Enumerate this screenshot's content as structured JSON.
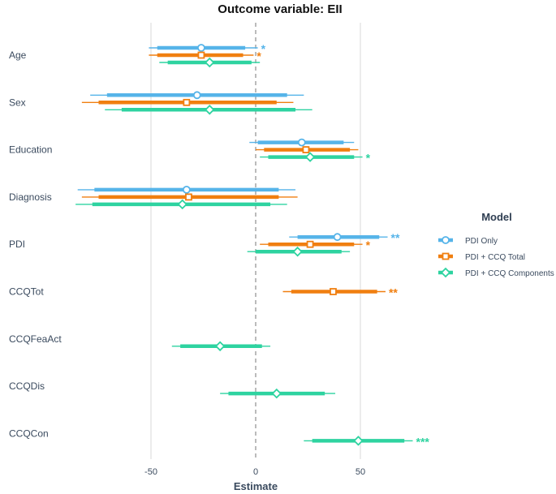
{
  "chart_data": {
    "type": "forest",
    "title": "Outcome variable: EII",
    "xlabel": "Estimate",
    "ylabel": "",
    "xlim": [
      -85,
      80
    ],
    "xticks": [
      -50,
      0,
      50
    ],
    "xtick_labels": [
      "-50",
      "0",
      "50"
    ],
    "grid": true,
    "reference_line": 0,
    "legend_title": "Model",
    "legend_position": "right",
    "categories": [
      "Age",
      "Sex",
      "Education",
      "Diagnosis",
      "PDI",
      "CCQTot",
      "CCQFeaAct",
      "CCQDis",
      "CCQCon"
    ],
    "series": [
      {
        "name": "PDI Only",
        "color": "#56B4E9",
        "marker": "circle",
        "points": [
          {
            "term": "Age",
            "estimate": -26,
            "ci90": [
              -47,
              -5
            ],
            "ci95": [
              -51,
              1
            ],
            "sig": "*"
          },
          {
            "term": "Sex",
            "estimate": -28,
            "ci90": [
              -71,
              15
            ],
            "ci95": [
              -79,
              23
            ],
            "sig": ""
          },
          {
            "term": "Education",
            "estimate": 22,
            "ci90": [
              1,
              42
            ],
            "ci95": [
              -3,
              47
            ],
            "sig": ""
          },
          {
            "term": "Diagnosis",
            "estimate": -33,
            "ci90": [
              -77,
              11
            ],
            "ci95": [
              -85,
              19
            ],
            "sig": ""
          },
          {
            "term": "PDI",
            "estimate": 39,
            "ci90": [
              20,
              59
            ],
            "ci95": [
              16,
              63
            ],
            "sig": "**"
          }
        ]
      },
      {
        "name": "PDI + CCQ Total",
        "color": "#F07F10",
        "marker": "square",
        "points": [
          {
            "term": "Age",
            "estimate": -26,
            "ci90": [
              -47,
              -6
            ],
            "ci95": [
              -51,
              -1
            ],
            "sig": "*"
          },
          {
            "term": "Sex",
            "estimate": -33,
            "ci90": [
              -75,
              10
            ],
            "ci95": [
              -83,
              18
            ],
            "sig": ""
          },
          {
            "term": "Education",
            "estimate": 24,
            "ci90": [
              4,
              45
            ],
            "ci95": [
              0,
              49
            ],
            "sig": ""
          },
          {
            "term": "Diagnosis",
            "estimate": -32,
            "ci90": [
              -75,
              11
            ],
            "ci95": [
              -83,
              20
            ],
            "sig": ""
          },
          {
            "term": "PDI",
            "estimate": 26,
            "ci90": [
              6,
              47
            ],
            "ci95": [
              2,
              51
            ],
            "sig": "*"
          },
          {
            "term": "CCQTot",
            "estimate": 37,
            "ci90": [
              17,
              58
            ],
            "ci95": [
              13,
              62
            ],
            "sig": "**"
          }
        ]
      },
      {
        "name": "PDI + CCQ Components",
        "color": "#2ED3A0",
        "marker": "diamond",
        "points": [
          {
            "term": "Age",
            "estimate": -22,
            "ci90": [
              -42,
              -2
            ],
            "ci95": [
              -46,
              2
            ],
            "sig": ""
          },
          {
            "term": "Sex",
            "estimate": -22,
            "ci90": [
              -64,
              19
            ],
            "ci95": [
              -72,
              27
            ],
            "sig": ""
          },
          {
            "term": "Education",
            "estimate": 26,
            "ci90": [
              6,
              47
            ],
            "ci95": [
              2,
              51
            ],
            "sig": "*"
          },
          {
            "term": "Diagnosis",
            "estimate": -35,
            "ci90": [
              -78,
              7
            ],
            "ci95": [
              -86,
              15
            ],
            "sig": ""
          },
          {
            "term": "PDI",
            "estimate": 20,
            "ci90": [
              0,
              41
            ],
            "ci95": [
              -4,
              45
            ],
            "sig": ""
          },
          {
            "term": "CCQFeaAct",
            "estimate": -17,
            "ci90": [
              -36,
              3
            ],
            "ci95": [
              -40,
              7
            ],
            "sig": ""
          },
          {
            "term": "CCQDis",
            "estimate": 10,
            "ci90": [
              -13,
              33
            ],
            "ci95": [
              -17,
              38
            ],
            "sig": ""
          },
          {
            "term": "CCQCon",
            "estimate": 49,
            "ci90": [
              27,
              71
            ],
            "ci95": [
              23,
              75
            ],
            "sig": "***"
          }
        ]
      }
    ]
  }
}
